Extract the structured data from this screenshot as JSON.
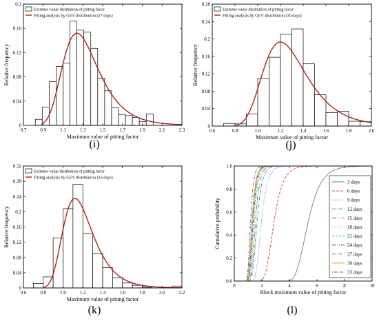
{
  "chart_data": [
    {
      "type": "bar",
      "panel_label": "(i)",
      "xlabel": "Maximum value of pitting factor",
      "ylabel": "Relative frequency",
      "xlim": [
        0.7,
        2.3
      ],
      "ylim": [
        0,
        0.2
      ],
      "xticks": [
        "0.7",
        "0.9",
        "1.1",
        "1.3",
        "1.5",
        "1.7",
        "1.9",
        "2.1",
        "2.3"
      ],
      "yticks": [
        "0",
        "0.04",
        "0.08",
        "0.12",
        "0.16",
        "0.2"
      ],
      "legend": [
        "Extreme value distibution of pitting facor",
        "Fitting analysis by GEV distribution (27 days)"
      ],
      "bin_start": 0.82,
      "bin_width": 0.07,
      "values": [
        0.01,
        0.03,
        0.072,
        0.097,
        0.103,
        0.172,
        0.157,
        0.154,
        0.127,
        0.078,
        0.057,
        0.029,
        0.018,
        0.016,
        0.013,
        0.006,
        0.019
      ],
      "curve": {
        "mu": 1.24,
        "sigma": 0.18,
        "xi": 0.0,
        "peak": 0.152
      }
    },
    {
      "type": "bar",
      "panel_label": "(j)",
      "xlabel": "Maximum value of pitting factor",
      "ylabel": "Relative frequency",
      "xlim": [
        0.6,
        2.0
      ],
      "ylim": [
        0,
        0.28
      ],
      "xticks": [
        "0.6",
        "0.8",
        "1.0",
        "1.2",
        "1.4",
        "1.6",
        "1.8",
        "2.0"
      ],
      "yticks": [
        "0",
        "0.04",
        "0.08",
        "0.12",
        "0.16",
        "0.2",
        "0.24",
        "0.28"
      ],
      "legend": [
        "Extreme value distibution of pitting facor",
        "Fitting analysis by GEV distribution (30 days)"
      ],
      "bin_start": 0.7,
      "bin_width": 0.1,
      "values": [
        0.006,
        0.005,
        0.028,
        0.109,
        0.158,
        0.211,
        0.223,
        0.143,
        0.072,
        0.031,
        0.034,
        0.011,
        0.01
      ],
      "curve": {
        "mu": 1.2,
        "sigma": 0.19,
        "xi": 0.0,
        "peak": 0.193
      }
    },
    {
      "type": "bar",
      "panel_label": "(k)",
      "xlabel": "Maximum value of pitting factor",
      "ylabel": "Relative frequency",
      "xlim": [
        0.6,
        2.2
      ],
      "ylim": [
        0,
        0.32
      ],
      "xticks": [
        "0.6",
        "0.8",
        "1.0",
        "1.2",
        "1.4",
        "1.6",
        "1.8",
        "2.0",
        "2.2"
      ],
      "yticks": [
        "0",
        "0.04",
        "0.08",
        "0.12",
        "0.16",
        "0.2",
        "0.24",
        "0.28",
        "0.32"
      ],
      "legend": [
        "Extreme value distibution of pitting facor",
        "Fitting analysis by GEV distribution (33 days)"
      ],
      "bin_start": 0.7,
      "bin_width": 0.1,
      "values": [
        0.012,
        0.029,
        0.131,
        0.208,
        0.272,
        0.143,
        0.09,
        0.053,
        0.027,
        0.013,
        0.007,
        0.002,
        0.0,
        0.0,
        0.005
      ],
      "curve": {
        "mu": 1.12,
        "sigma": 0.15,
        "xi": 0.0,
        "peak": 0.235
      }
    },
    {
      "type": "line",
      "panel_label": "(l)",
      "xlabel": "Block maximum value of pitting factor",
      "ylabel": "Cumulative probability",
      "xlim": [
        0,
        10
      ],
      "ylim": [
        0,
        1.0
      ],
      "xticks": [
        "0",
        "2",
        "4",
        "6",
        "8",
        "10"
      ],
      "yticks": [
        "0.0",
        "0.2",
        "0.4",
        "0.6",
        "0.8",
        "1.0"
      ],
      "series": [
        {
          "name": "3 days",
          "mu": 5.1,
          "sigma": 0.65,
          "color": "#7a7a7a",
          "dash": ""
        },
        {
          "name": "6 days",
          "mu": 2.7,
          "sigma": 0.45,
          "color": "#d9402b",
          "dash": "4,2"
        },
        {
          "name": "9 days",
          "mu": 1.85,
          "sigma": 0.3,
          "color": "#2a6fd6",
          "dash": "1,2"
        },
        {
          "name": "12 days",
          "mu": 1.55,
          "sigma": 0.25,
          "color": "#1e9a6a",
          "dash": "5,2,1,2"
        },
        {
          "name": "15 days",
          "mu": 1.45,
          "sigma": 0.22,
          "color": "#6a5acd",
          "dash": "6,2,1,2,1,2"
        },
        {
          "name": "18 days",
          "mu": 1.38,
          "sigma": 0.2,
          "color": "#c9a400",
          "dash": "1,1.5"
        },
        {
          "name": "21 days",
          "mu": 1.32,
          "sigma": 0.19,
          "color": "#32b4a8",
          "dash": "3,2"
        },
        {
          "name": "24 days",
          "mu": 1.28,
          "sigma": 0.18,
          "color": "#5a2a8a",
          "dash": "5,2,1,2,1,2"
        },
        {
          "name": "27 days",
          "mu": 1.24,
          "sigma": 0.18,
          "color": "#7c7a1f",
          "dash": "5,2,1,2"
        },
        {
          "name": "30 days",
          "mu": 1.2,
          "sigma": 0.19,
          "color": "#e6a01e",
          "dash": ""
        },
        {
          "name": "33 days",
          "mu": 1.12,
          "sigma": 0.15,
          "color": "#2a4fd0",
          "dash": "1,2,4,2"
        }
      ]
    }
  ]
}
